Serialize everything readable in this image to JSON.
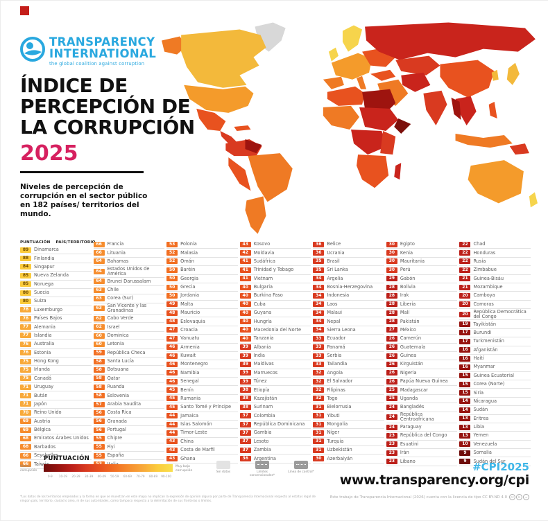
{
  "logo": {
    "line1": "TRANSPARENCY",
    "line2": "INTERNATIONAL",
    "tagline": "the global coalition against corruption"
  },
  "title": {
    "line1": "ÍNDICE DE",
    "line2": "PERCEPCIÓN DE",
    "line3": "LA CORRUPCIÓN",
    "year": "2025"
  },
  "subtitle": "Niveles de percepción de corrupción en el sector público en 182 países/ territorios del mundo.",
  "colors": {
    "brand_red": "#C41E1A",
    "logo_blue": "#29A8DF",
    "year_pink": "#D6205F",
    "hashtag_blue": "#3EB6E8",
    "chip_text_dark": "#6E4A00",
    "scale": {
      "0": "#6E0C0A",
      "10": "#96130F",
      "20": "#BC201A",
      "30": "#D93A20",
      "40": "#E8521F",
      "50": "#F26F22",
      "60": "#F68D2E",
      "70": "#F8A93A",
      "80": "#FBCB3C",
      "90": "#F9E04E"
    }
  },
  "table": {
    "score_header": "PUNTUACIÓN",
    "country_header": "PAÍS/TERRITORIO",
    "columns": [
      [
        [
          89,
          "Dinamarca"
        ],
        [
          88,
          "Finlandia"
        ],
        [
          84,
          "Singapur"
        ],
        [
          85,
          "Nueva Zelanda"
        ],
        [
          85,
          "Noruega"
        ],
        [
          80,
          "Suecia"
        ],
        [
          80,
          "Suiza"
        ],
        [
          78,
          "Luxemburgo"
        ],
        [
          78,
          "Países Bajos"
        ],
        [
          77,
          "Alemania"
        ],
        [
          77,
          "Islandia"
        ],
        [
          76,
          "Australia"
        ],
        [
          76,
          "Estonia"
        ],
        [
          75,
          "Hong Kong"
        ],
        [
          75,
          "Irlanda"
        ],
        [
          75,
          "Canadá"
        ],
        [
          71,
          "Uruguay"
        ],
        [
          71,
          "Bután"
        ],
        [
          71,
          "Japón"
        ],
        [
          70,
          "Reino Unido"
        ],
        [
          69,
          "Austria"
        ],
        [
          69,
          "Bélgica"
        ],
        [
          68,
          "Emiratos Árabes Unidos"
        ],
        [
          68,
          "Barbados"
        ],
        [
          66,
          "Seychelles"
        ],
        [
          66,
          "Taiwán"
        ]
      ],
      [
        [
          66,
          "Francia"
        ],
        [
          66,
          "Lituania"
        ],
        [
          64,
          "Bahamas"
        ],
        [
          64,
          "Estados Unidos de América"
        ],
        [
          64,
          "Brunei Darussalam"
        ],
        [
          63,
          "Chile"
        ],
        [
          63,
          "Corea (Sur)"
        ],
        [
          63,
          "San Vicente y las Granadinas"
        ],
        [
          62,
          "Cabo Verde"
        ],
        [
          62,
          "Israel"
        ],
        [
          60,
          "Dominica"
        ],
        [
          60,
          "Letonia"
        ],
        [
          59,
          "República Checa"
        ],
        [
          58,
          "Santa Lucía"
        ],
        [
          58,
          "Botsuana"
        ],
        [
          58,
          "Qatar"
        ],
        [
          58,
          "Ruanda"
        ],
        [
          58,
          "Eslovenia"
        ],
        [
          57,
          "Arabia Saudita"
        ],
        [
          56,
          "Costa Rica"
        ],
        [
          56,
          "Granada"
        ],
        [
          56,
          "Portugal"
        ],
        [
          55,
          "Chipre"
        ],
        [
          55,
          "Fiyi"
        ],
        [
          55,
          "España"
        ],
        [
          53,
          "Italia"
        ]
      ],
      [
        [
          53,
          "Polonia"
        ],
        [
          52,
          "Malasia"
        ],
        [
          52,
          "Omán"
        ],
        [
          50,
          "Baréin"
        ],
        [
          50,
          "Georgia"
        ],
        [
          50,
          "Grecia"
        ],
        [
          50,
          "Jordania"
        ],
        [
          49,
          "Malta"
        ],
        [
          48,
          "Mauricio"
        ],
        [
          48,
          "Eslovaquia"
        ],
        [
          47,
          "Croacia"
        ],
        [
          47,
          "Vanuatu"
        ],
        [
          46,
          "Armenia"
        ],
        [
          46,
          "Kuwait"
        ],
        [
          46,
          "Montenegro"
        ],
        [
          46,
          "Namibia"
        ],
        [
          46,
          "Senegal"
        ],
        [
          45,
          "Benín"
        ],
        [
          45,
          "Rumania"
        ],
        [
          45,
          "Santo Tomé y Príncipe"
        ],
        [
          44,
          "Jamaica"
        ],
        [
          44,
          "Islas Salomón"
        ],
        [
          44,
          "Timor-Leste"
        ],
        [
          43,
          "China"
        ],
        [
          43,
          "Costa de Marfil"
        ],
        [
          43,
          "Ghana"
        ]
      ],
      [
        [
          43,
          "Kosovo"
        ],
        [
          42,
          "Moldavia"
        ],
        [
          41,
          "Sudáfrica"
        ],
        [
          41,
          "Trinidad y Tobago"
        ],
        [
          41,
          "Vietnam"
        ],
        [
          40,
          "Bulgaria"
        ],
        [
          40,
          "Burkina Faso"
        ],
        [
          40,
          "Cuba"
        ],
        [
          40,
          "Guyana"
        ],
        [
          40,
          "Hungría"
        ],
        [
          40,
          "Macedonia del Norte"
        ],
        [
          40,
          "Tanzania"
        ],
        [
          39,
          "Albania"
        ],
        [
          39,
          "India"
        ],
        [
          39,
          "Maldivas"
        ],
        [
          39,
          "Marruecos"
        ],
        [
          39,
          "Túnez"
        ],
        [
          38,
          "Etiopía"
        ],
        [
          38,
          "Kazajistán"
        ],
        [
          38,
          "Surinam"
        ],
        [
          37,
          "Colombia"
        ],
        [
          37,
          "República Dominicana"
        ],
        [
          37,
          "Gambia"
        ],
        [
          37,
          "Lesoto"
        ],
        [
          37,
          "Zambia"
        ],
        [
          36,
          "Argentina"
        ]
      ],
      [
        [
          36,
          "Belice"
        ],
        [
          36,
          "Ucrania"
        ],
        [
          35,
          "Brasil"
        ],
        [
          35,
          "Sri Lanka"
        ],
        [
          34,
          "Argelia"
        ],
        [
          34,
          "Bosnia-Herzegovina"
        ],
        [
          34,
          "Indonesia"
        ],
        [
          34,
          "Laos"
        ],
        [
          34,
          "Malaui"
        ],
        [
          34,
          "Nepal"
        ],
        [
          34,
          "Sierra Leona"
        ],
        [
          33,
          "Ecuador"
        ],
        [
          33,
          "Panamá"
        ],
        [
          33,
          "Serbia"
        ],
        [
          33,
          "Tailandia"
        ],
        [
          32,
          "Angola"
        ],
        [
          32,
          "El Salvador"
        ],
        [
          32,
          "Filipinas"
        ],
        [
          32,
          "Togo"
        ],
        [
          31,
          "Bielorrusia"
        ],
        [
          31,
          "Yibuti"
        ],
        [
          31,
          "Mongolia"
        ],
        [
          31,
          "Níger"
        ],
        [
          31,
          "Turquía"
        ],
        [
          31,
          "Uzbekistán"
        ],
        [
          30,
          "Azerbaiyán"
        ]
      ],
      [
        [
          30,
          "Egipto"
        ],
        [
          30,
          "Kenia"
        ],
        [
          30,
          "Mauritania"
        ],
        [
          30,
          "Perú"
        ],
        [
          29,
          "Gabón"
        ],
        [
          28,
          "Bolivia"
        ],
        [
          28,
          "Irak"
        ],
        [
          28,
          "Liberia"
        ],
        [
          28,
          "Malí"
        ],
        [
          28,
          "Pakistán"
        ],
        [
          27,
          "México"
        ],
        [
          26,
          "Camerún"
        ],
        [
          26,
          "Guatemala"
        ],
        [
          26,
          "Guinea"
        ],
        [
          26,
          "Kirguistán"
        ],
        [
          26,
          "Nigeria"
        ],
        [
          26,
          "Papúa Nueva Guinea"
        ],
        [
          25,
          "Madagascar"
        ],
        [
          25,
          "Uganda"
        ],
        [
          24,
          "Bangladés"
        ],
        [
          24,
          "República Centroafricana"
        ],
        [
          24,
          "Paraguay"
        ],
        [
          23,
          "República del Congo"
        ],
        [
          23,
          "Esuatini"
        ],
        [
          23,
          "Irán"
        ],
        [
          23,
          "Líbano"
        ]
      ],
      [
        [
          22,
          "Chad"
        ],
        [
          22,
          "Honduras"
        ],
        [
          22,
          "Rusia"
        ],
        [
          22,
          "Zimbabue"
        ],
        [
          21,
          "Guinea-Bisáu"
        ],
        [
          21,
          "Mozambique"
        ],
        [
          20,
          "Camboya"
        ],
        [
          20,
          "Comoras"
        ],
        [
          20,
          "República Democrática del Congo"
        ],
        [
          19,
          "Tayikistán"
        ],
        [
          17,
          "Burundi"
        ],
        [
          17,
          "Turkmenistán"
        ],
        [
          16,
          "Afganistán"
        ],
        [
          16,
          "Haití"
        ],
        [
          16,
          "Myanmar"
        ],
        [
          15,
          "Guinea Ecuatorial"
        ],
        [
          15,
          "Corea (Norte)"
        ],
        [
          15,
          "Siria"
        ],
        [
          14,
          "Nicaragua"
        ],
        [
          14,
          "Sudán"
        ],
        [
          13,
          "Eritrea"
        ],
        [
          13,
          "Libia"
        ],
        [
          13,
          "Yemen"
        ],
        [
          10,
          "Venezuela"
        ],
        [
          9,
          "Somalia"
        ],
        [
          9,
          "Sudán del Sur"
        ]
      ]
    ]
  },
  "legend": {
    "title": "PUNTUACIÓN",
    "left_label": "Mucha corrupción",
    "right_label": "Muy baja corrupción",
    "ranges": [
      "0-9",
      "10-19",
      "20-29",
      "30-39",
      "40-49",
      "50-59",
      "60-69",
      "70-79",
      "80-89",
      "90-100"
    ],
    "no_data": "Sin datos",
    "boundaries": "Límites convencionales*",
    "control_line": "Línea de control*"
  },
  "footer": {
    "disclaimer": "*Los datos de los territorios empleados y la forma en que se muestran en este mapa no implican la expresión de opinión alguna por parte de Transparencia Internacional respecto al estatus legal de ningún país, territorio, ciudad o área, ni de sus autoridades, como tampoco respecto a la delimitación de sus fronteras o límites.",
    "hashtag": "#CPI2025",
    "url": "www.transparency.org/cpi",
    "license": "Este trabajo de Transparencia Internacional (2026) cuenta con la licencia de tipo CC BY-ND 4.0"
  }
}
